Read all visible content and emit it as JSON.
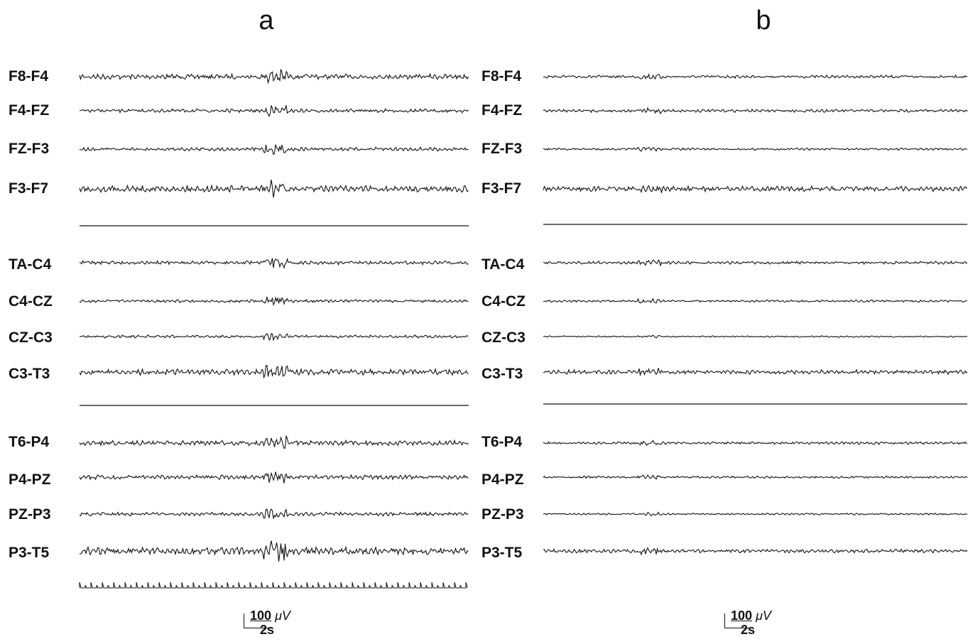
{
  "panels": [
    {
      "title": "a",
      "channels": [
        "F8-F4",
        "F4-FZ",
        "FZ-F3",
        "F3-F7",
        "TA-C4",
        "C4-CZ",
        "CZ-C3",
        "C3-T3",
        "T6-P4",
        "P4-PZ",
        "PZ-P3",
        "P3-T5"
      ],
      "scale": {
        "voltage": "100",
        "unit": "μV",
        "time": "2s"
      }
    },
    {
      "title": "b",
      "channels": [
        "F8-F4",
        "F4-FZ",
        "FZ-F3",
        "F3-F7",
        "TA-C4",
        "C4-CZ",
        "CZ-C3",
        "C3-T3",
        "T6-P4",
        "P4-PZ",
        "PZ-P3",
        "P3-T5"
      ],
      "scale": {
        "voltage": "100",
        "unit": "μV",
        "time": "2s"
      }
    }
  ],
  "trace_color": "#111111"
}
